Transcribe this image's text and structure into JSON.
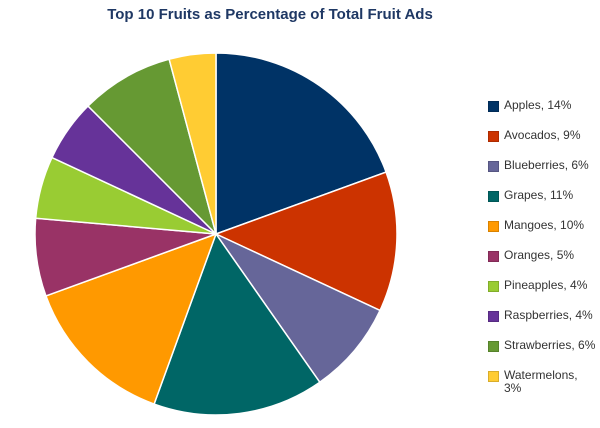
{
  "chart_data": {
    "type": "pie",
    "title": "Top 10 Fruits as Percentage of Total Fruit Ads",
    "unit": "%",
    "legend_position": "right",
    "slices": [
      {
        "label": "Apples",
        "value": 14,
        "color": "#003366",
        "legend_text": "Apples, 14%"
      },
      {
        "label": "Avocados",
        "value": 9,
        "color": "#cc3300",
        "legend_text": "Avocados, 9%"
      },
      {
        "label": "Blueberries",
        "value": 6,
        "color": "#666699",
        "legend_text": "Blueberries, 6%"
      },
      {
        "label": "Grapes",
        "value": 11,
        "color": "#006666",
        "legend_text": "Grapes, 11%"
      },
      {
        "label": "Mangoes",
        "value": 10,
        "color": "#ff9900",
        "legend_text": "Mangoes, 10%"
      },
      {
        "label": "Oranges",
        "value": 5,
        "color": "#993366",
        "legend_text": "Oranges, 5%"
      },
      {
        "label": "Pineapples",
        "value": 4,
        "color": "#99cc33",
        "legend_text": "Pineapples, 4%"
      },
      {
        "label": "Raspberries",
        "value": 4,
        "color": "#663399",
        "legend_text": "Raspberries, 4%"
      },
      {
        "label": "Strawberries",
        "value": 6,
        "color": "#669933",
        "legend_text": "Strawberries, 6%"
      },
      {
        "label": "Watermelons",
        "value": 3,
        "color": "#ffcc33",
        "legend_text": "Watermelons, 3%"
      }
    ]
  }
}
